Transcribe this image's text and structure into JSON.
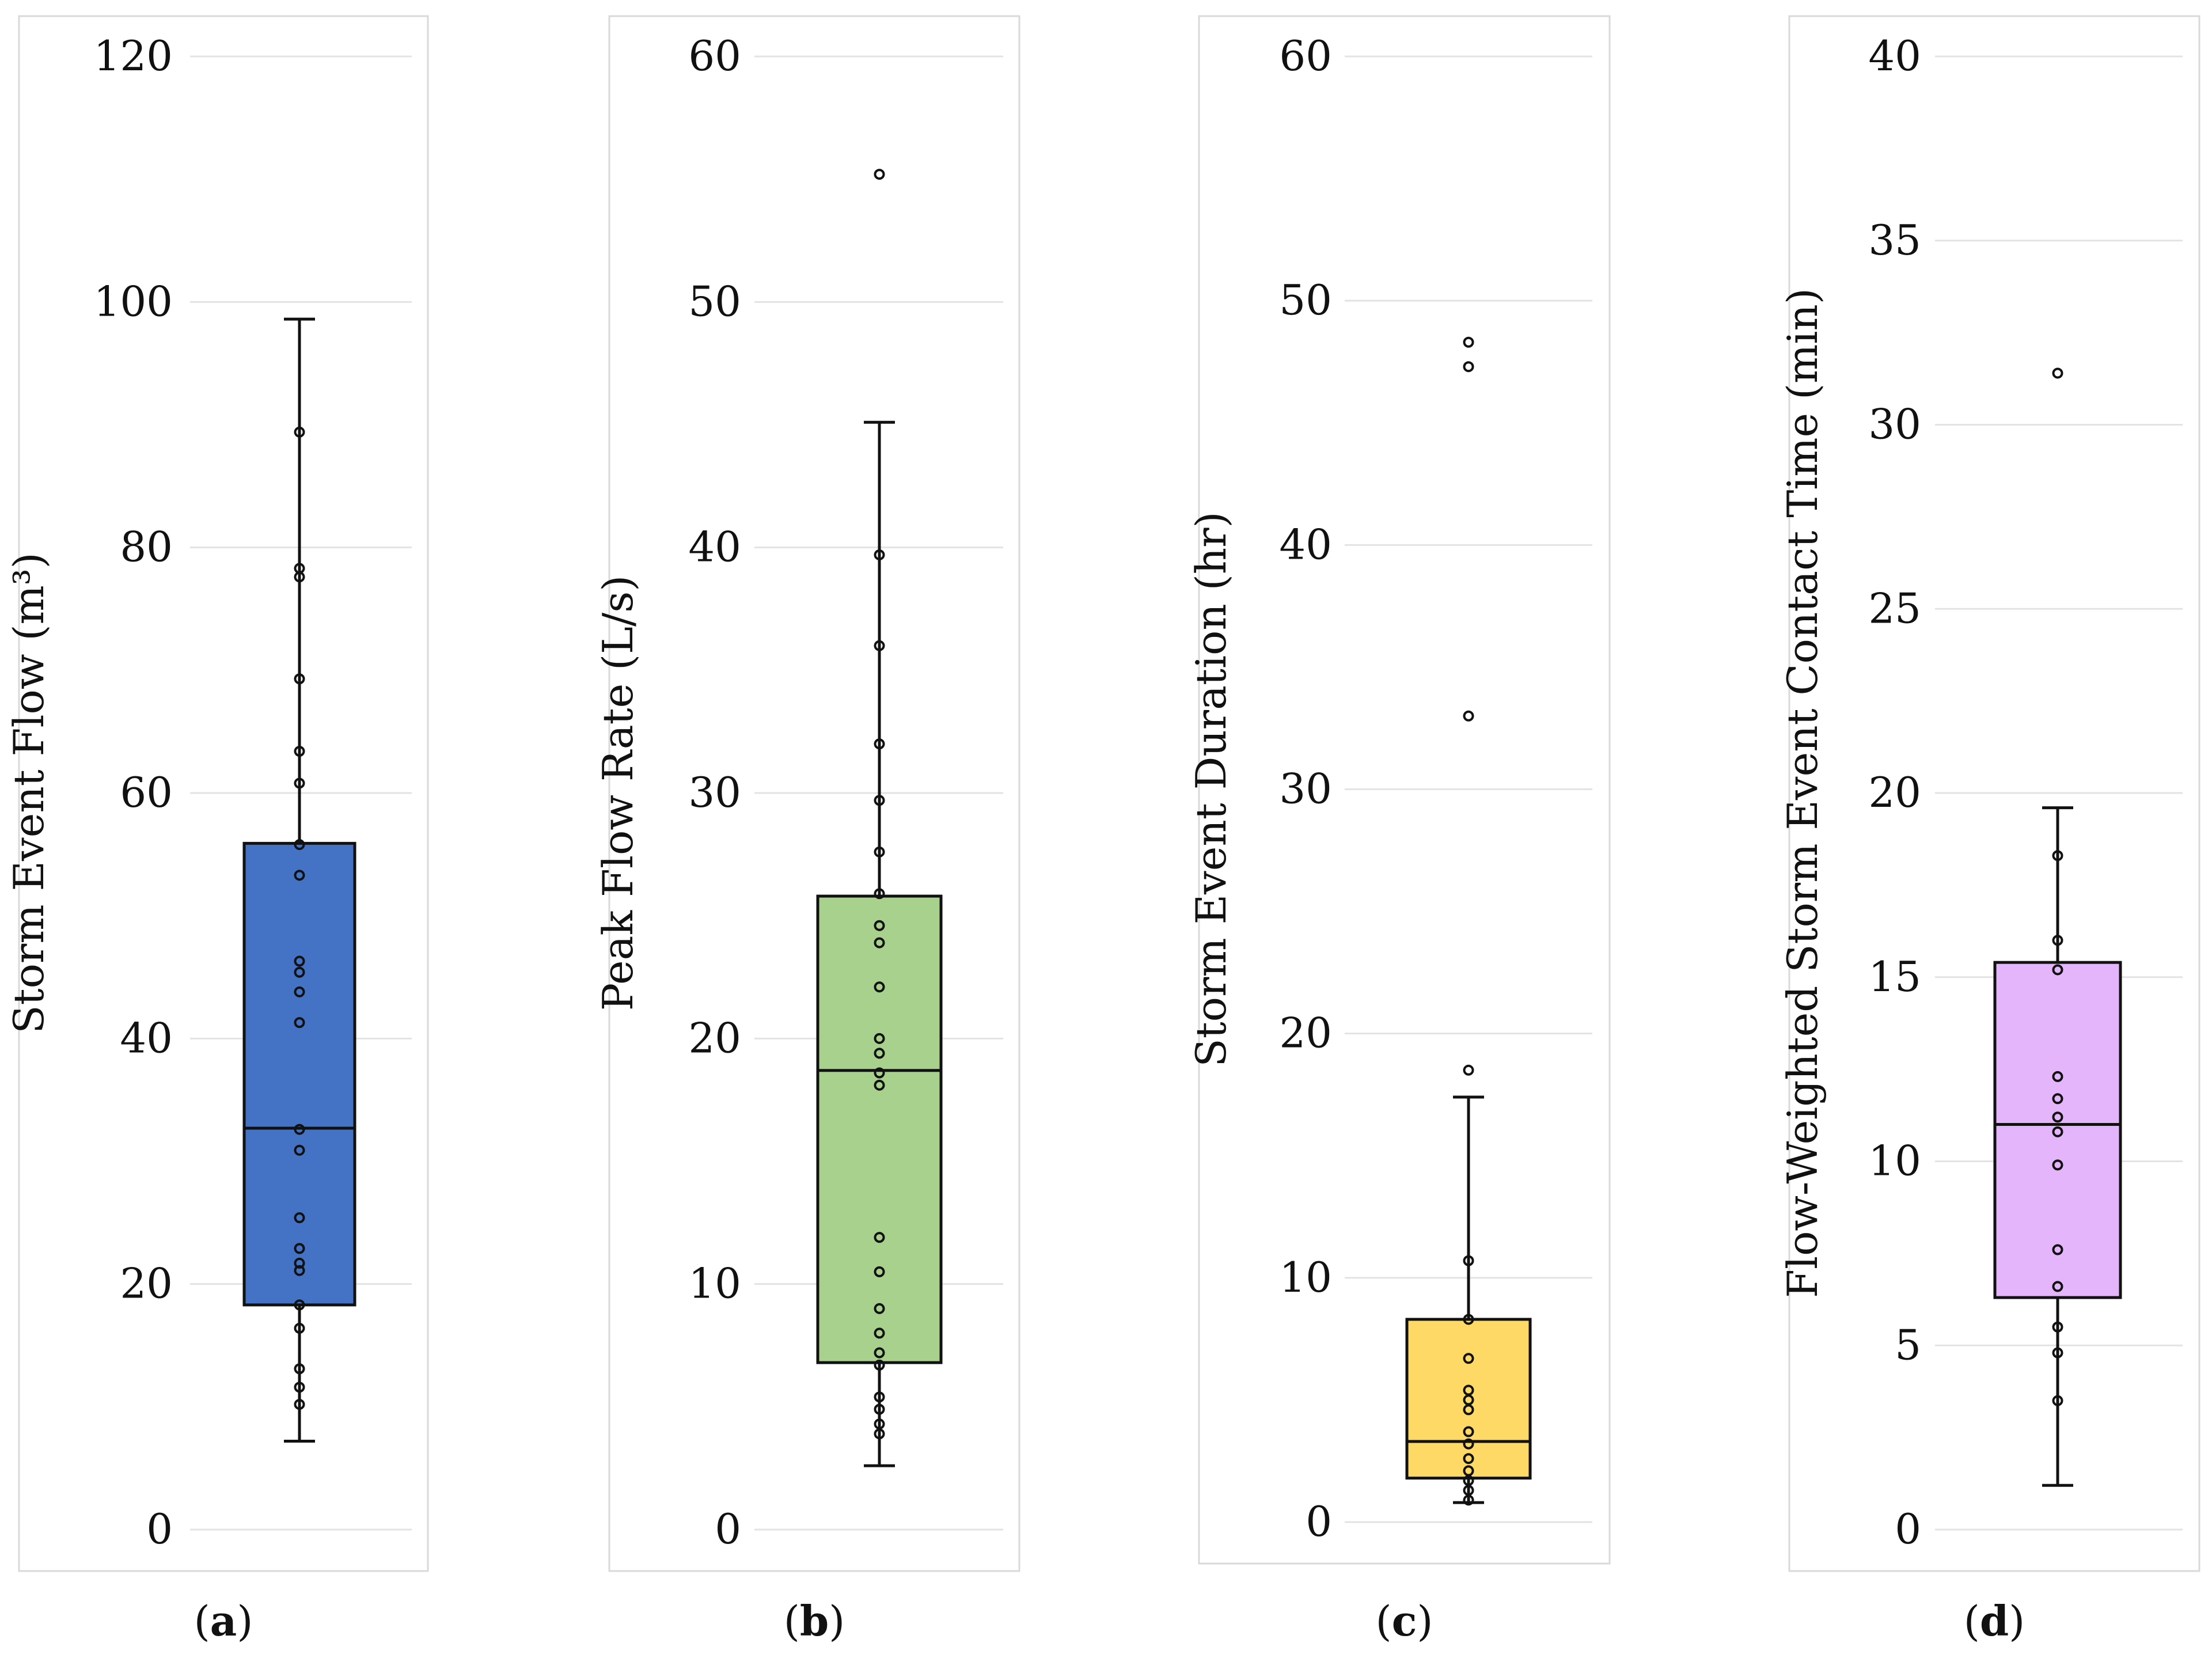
{
  "chart_data": [
    {
      "type": "box",
      "panel": "a",
      "caption": {
        "open": "(",
        "letter": "a",
        "close": ")"
      },
      "ylabel": "Storm Event Flow (m³)",
      "ylim": [
        0,
        120
      ],
      "yticks": [
        0,
        20,
        40,
        60,
        80,
        100,
        120
      ],
      "color": "#4472C4",
      "stats": {
        "min": 7.2,
        "q1": 18.3,
        "median": 32.7,
        "q3": 55.9,
        "max": 98.6
      },
      "points": [
        10.2,
        11.6,
        13.1,
        16.4,
        18.3,
        21.1,
        21.7,
        22.9,
        25.4,
        30.9,
        32.6,
        41.3,
        43.8,
        45.4,
        46.3,
        53.3,
        55.8,
        60.8,
        63.4,
        69.3,
        77.6,
        78.3,
        89.4
      ],
      "outliers": []
    },
    {
      "type": "box",
      "panel": "b",
      "caption": {
        "open": "(",
        "letter": "b",
        "close": ")"
      },
      "ylabel": "Peak Flow Rate (L/s)",
      "ylim": [
        0,
        60
      ],
      "yticks": [
        0,
        10,
        20,
        30,
        40,
        50,
        60
      ],
      "color": "#A9D18E",
      "stats": {
        "min": 2.6,
        "q1": 6.8,
        "median": 18.7,
        "q3": 25.8,
        "max": 45.1
      },
      "points": [
        3.9,
        4.3,
        4.9,
        5.4,
        6.7,
        7.2,
        8.0,
        9.0,
        10.5,
        11.9,
        18.1,
        18.6,
        19.4,
        20.0,
        22.1,
        23.9,
        24.6,
        25.9,
        27.6,
        29.7,
        32.0,
        36.0,
        39.7
      ],
      "outliers": [
        55.2
      ]
    },
    {
      "type": "box",
      "panel": "c",
      "caption": {
        "open": "(",
        "letter": "c",
        "close": ")"
      },
      "ylabel": "Storm Event Duration (hr)",
      "ylim": [
        0,
        60
      ],
      "yticks": [
        0,
        10,
        20,
        30,
        40,
        50,
        60
      ],
      "color": "#FFD966",
      "stats": {
        "min": 0.8,
        "q1": 1.8,
        "median": 3.3,
        "q3": 8.3,
        "max": 17.4
      },
      "points": [
        0.9,
        1.3,
        1.7,
        2.1,
        2.6,
        3.2,
        3.7,
        4.6,
        5.0,
        5.4,
        6.7,
        8.3,
        10.7
      ],
      "outliers": [
        18.5,
        33.0,
        47.3,
        48.3
      ]
    },
    {
      "type": "box",
      "panel": "d",
      "caption": {
        "open": "(",
        "letter": "d",
        "close": ")"
      },
      "ylabel": "Flow-Weighted Storm Event Contact Time (min)",
      "ylim": [
        0,
        40
      ],
      "yticks": [
        0,
        5,
        10,
        15,
        20,
        25,
        30,
        35,
        40
      ],
      "color": "#E4B5FA",
      "stats": {
        "min": 1.2,
        "q1": 6.3,
        "median": 11.0,
        "q3": 15.4,
        "max": 19.6
      },
      "points": [
        3.5,
        4.8,
        5.5,
        6.6,
        7.6,
        9.9,
        10.8,
        11.2,
        11.7,
        12.3,
        15.2,
        16.0,
        18.3
      ],
      "outliers": [
        31.4
      ]
    }
  ]
}
